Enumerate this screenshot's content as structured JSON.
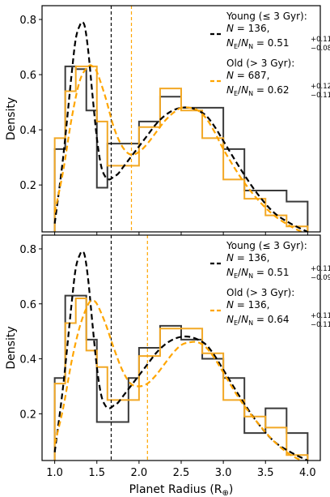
{
  "chart_data": [
    {
      "type": "line",
      "panel": "top",
      "xlabel": "",
      "ylabel": "Density",
      "xlim": [
        0.85,
        4.15
      ],
      "ylim": [
        0.03,
        0.85
      ],
      "x_ticks": [
        1.0,
        1.5,
        2.0,
        2.5,
        3.0,
        3.5,
        4.0
      ],
      "x_tick_labels": [],
      "y_ticks": [
        0.2,
        0.4,
        0.6,
        0.8
      ],
      "y_tick_labels": [
        "0.2",
        "0.4",
        "0.6",
        "0.8"
      ],
      "grid": false,
      "legend_position": "top-right",
      "legend": [
        {
          "title": "Young (≤ 3 Gyr):",
          "n_text": "N = 136,",
          "ratio_label": "NE/NN = ",
          "ratio_value": "0.51",
          "err_plus": "+0.11",
          "err_minus": "−0.08",
          "color": "#000000"
        },
        {
          "title": "Old (> 3 Gyr):",
          "n_text": "N = 687,",
          "ratio_label": "NE/NN = ",
          "ratio_value": "0.62",
          "err_plus": "+0.12",
          "err_minus": "−0.11",
          "color": "#FFA500"
        }
      ],
      "vlines": [
        {
          "x": 1.67,
          "color": "#000000"
        },
        {
          "x": 1.91,
          "color": "#FFA500"
        }
      ],
      "histograms": [
        {
          "group": "young",
          "color": "#3a3a3a",
          "bin_edges": [
            1.0,
            1.125,
            1.25,
            1.375,
            1.5,
            1.625,
            1.75,
            1.875,
            2.0,
            2.125,
            2.25,
            2.375,
            2.5,
            2.625,
            2.75,
            2.875,
            3.0,
            3.125,
            3.25,
            3.375,
            3.5,
            3.625,
            3.75,
            3.875,
            4.0
          ],
          "bin_edges_used": [
            1.0,
            1.125,
            1.25,
            1.375,
            1.5,
            1.625,
            1.75,
            1.875,
            2.0,
            2.125,
            2.25,
            2.375,
            2.5,
            2.625,
            2.75,
            2.875,
            3.0,
            3.125,
            3.25,
            3.375,
            3.5,
            3.625,
            3.75,
            3.875,
            4.0
          ]
        },
        {
          "group": "old",
          "color": "#F2A825"
        }
      ],
      "series": [
        {
          "name": "Young (≤ 3 Gyr)",
          "style": "hist",
          "color": "#3a3a3a",
          "bins": [
            [
              1.0,
              1.125,
              0.33
            ],
            [
              1.125,
              1.25,
              0.63
            ],
            [
              1.25,
              1.375,
              0.62
            ],
            [
              1.375,
              1.5,
              0.47
            ],
            [
              1.5,
              1.625,
              0.19
            ],
            [
              1.625,
              1.875,
              0.35
            ],
            [
              1.875,
              2.0,
              0.35
            ],
            [
              2.0,
              2.25,
              0.43
            ],
            [
              2.25,
              2.5,
              0.52
            ],
            [
              2.5,
              2.75,
              0.48
            ],
            [
              2.75,
              3.0,
              0.48
            ],
            [
              3.0,
              3.25,
              0.33
            ],
            [
              3.25,
              3.5,
              0.18
            ],
            [
              3.5,
              3.75,
              0.18
            ],
            [
              3.75,
              4.0,
              0.14
            ]
          ]
        },
        {
          "name": "Old (> 3 Gyr)",
          "style": "hist",
          "color": "#F2A825",
          "bins": [
            [
              1.0,
              1.125,
              0.37
            ],
            [
              1.125,
              1.25,
              0.54
            ],
            [
              1.25,
              1.375,
              0.63
            ],
            [
              1.375,
              1.5,
              0.63
            ],
            [
              1.5,
              1.625,
              0.43
            ],
            [
              1.625,
              1.875,
              0.27
            ],
            [
              1.875,
              2.0,
              0.27
            ],
            [
              2.0,
              2.25,
              0.41
            ],
            [
              2.25,
              2.5,
              0.55
            ],
            [
              2.5,
              2.75,
              0.47
            ],
            [
              2.75,
              3.0,
              0.37
            ],
            [
              3.0,
              3.25,
              0.22
            ],
            [
              3.25,
              3.5,
              0.15
            ],
            [
              3.5,
              3.75,
              0.09
            ],
            [
              3.75,
              4.0,
              0.05
            ]
          ]
        },
        {
          "name": "Young (≤ 3 Gyr)",
          "style": "dashed",
          "color": "#000000",
          "x": [
            1.0,
            1.1,
            1.2,
            1.25,
            1.3,
            1.33,
            1.36,
            1.4,
            1.45,
            1.5,
            1.55,
            1.6,
            1.65,
            1.7,
            1.75,
            1.8,
            1.9,
            2.0,
            2.1,
            2.2,
            2.3,
            2.4,
            2.5,
            2.6,
            2.7,
            2.8,
            2.9,
            3.0,
            3.2,
            3.4,
            3.6,
            3.8,
            4.0
          ],
          "y": [
            0.06,
            0.3,
            0.6,
            0.73,
            0.78,
            0.79,
            0.77,
            0.68,
            0.52,
            0.37,
            0.27,
            0.23,
            0.22,
            0.23,
            0.24,
            0.26,
            0.3,
            0.34,
            0.38,
            0.42,
            0.45,
            0.47,
            0.48,
            0.48,
            0.47,
            0.45,
            0.41,
            0.36,
            0.26,
            0.17,
            0.1,
            0.06,
            0.03
          ]
        },
        {
          "name": "Old (> 3 Gyr)",
          "style": "dashed",
          "color": "#FFA500",
          "x": [
            1.0,
            1.1,
            1.2,
            1.3,
            1.4,
            1.45,
            1.5,
            1.6,
            1.7,
            1.8,
            1.9,
            2.0,
            2.1,
            2.2,
            2.3,
            2.4,
            2.5,
            2.6,
            2.7,
            2.8,
            2.9,
            3.0,
            3.2,
            3.4,
            3.6,
            3.8,
            4.0
          ],
          "y": [
            0.1,
            0.25,
            0.44,
            0.58,
            0.63,
            0.63,
            0.61,
            0.52,
            0.41,
            0.34,
            0.31,
            0.32,
            0.35,
            0.39,
            0.43,
            0.46,
            0.48,
            0.48,
            0.47,
            0.44,
            0.39,
            0.33,
            0.23,
            0.15,
            0.09,
            0.05,
            0.02
          ]
        }
      ]
    },
    {
      "type": "line",
      "panel": "bottom",
      "xlabel": "Planet Radius (R⊕)",
      "ylabel": "Density",
      "xlim": [
        0.85,
        4.15
      ],
      "ylim": [
        0.03,
        0.85
      ],
      "x_ticks": [
        1.0,
        1.5,
        2.0,
        2.5,
        3.0,
        3.5,
        4.0
      ],
      "x_tick_labels": [
        "1.0",
        "1.5",
        "2.0",
        "2.5",
        "3.0",
        "3.5",
        "4.0"
      ],
      "y_ticks": [
        0.2,
        0.4,
        0.6,
        0.8
      ],
      "y_tick_labels": [
        "0.2",
        "0.4",
        "0.6",
        "0.8"
      ],
      "grid": false,
      "legend_position": "top-right",
      "legend": [
        {
          "title": "Young (≤ 3 Gyr):",
          "n_text": "N = 136,",
          "ratio_label": "NE/NN = ",
          "ratio_value": "0.51",
          "err_plus": "+0.11",
          "err_minus": "−0.09",
          "color": "#000000"
        },
        {
          "title": "Old (> 3 Gyr):",
          "n_text": "N = 136,",
          "ratio_label": "NE/NN = ",
          "ratio_value": "0.64",
          "err_plus": "+0.11",
          "err_minus": "−0.11",
          "color": "#FFA500"
        }
      ],
      "vlines": [
        {
          "x": 1.67,
          "color": "#000000"
        },
        {
          "x": 2.1,
          "color": "#FFA500"
        }
      ],
      "series": [
        {
          "name": "Young (≤ 3 Gyr)",
          "style": "hist",
          "color": "#3a3a3a",
          "bins": [
            [
              1.0,
              1.125,
              0.33
            ],
            [
              1.125,
              1.25,
              0.63
            ],
            [
              1.25,
              1.375,
              0.63
            ],
            [
              1.375,
              1.5,
              0.47
            ],
            [
              1.5,
              1.625,
              0.17
            ],
            [
              1.625,
              1.875,
              0.17
            ],
            [
              1.875,
              2.0,
              0.33
            ],
            [
              2.0,
              2.25,
              0.44
            ],
            [
              2.25,
              2.5,
              0.52
            ],
            [
              2.5,
              2.75,
              0.47
            ],
            [
              2.75,
              3.0,
              0.4
            ],
            [
              3.0,
              3.25,
              0.33
            ],
            [
              3.25,
              3.5,
              0.13
            ],
            [
              3.5,
              3.75,
              0.22
            ],
            [
              3.75,
              4.0,
              0.13
            ]
          ]
        },
        {
          "name": "Old (> 3 Gyr)",
          "style": "hist",
          "color": "#F2A825",
          "bins": [
            [
              1.0,
              1.125,
              0.31
            ],
            [
              1.125,
              1.25,
              0.53
            ],
            [
              1.25,
              1.375,
              0.62
            ],
            [
              1.375,
              1.5,
              0.43
            ],
            [
              1.5,
              1.625,
              0.37
            ],
            [
              1.625,
              1.875,
              0.25
            ],
            [
              1.875,
              2.0,
              0.25
            ],
            [
              2.0,
              2.25,
              0.41
            ],
            [
              2.25,
              2.5,
              0.51
            ],
            [
              2.5,
              2.75,
              0.51
            ],
            [
              2.75,
              3.0,
              0.42
            ],
            [
              3.0,
              3.25,
              0.25
            ],
            [
              3.25,
              3.5,
              0.19
            ],
            [
              3.5,
              3.75,
              0.15
            ],
            [
              3.75,
              4.0,
              0.05
            ]
          ]
        },
        {
          "name": "Young (≤ 3 Gyr)",
          "style": "dashed",
          "color": "#000000",
          "x": [
            1.0,
            1.1,
            1.2,
            1.25,
            1.3,
            1.33,
            1.36,
            1.4,
            1.45,
            1.5,
            1.55,
            1.6,
            1.65,
            1.7,
            1.75,
            1.8,
            1.9,
            2.0,
            2.1,
            2.2,
            2.3,
            2.4,
            2.5,
            2.6,
            2.7,
            2.8,
            2.9,
            3.0,
            3.2,
            3.4,
            3.6,
            3.8,
            4.0
          ],
          "y": [
            0.06,
            0.3,
            0.6,
            0.73,
            0.78,
            0.79,
            0.77,
            0.68,
            0.52,
            0.37,
            0.27,
            0.23,
            0.22,
            0.23,
            0.24,
            0.26,
            0.3,
            0.34,
            0.38,
            0.42,
            0.45,
            0.47,
            0.48,
            0.48,
            0.47,
            0.45,
            0.41,
            0.36,
            0.26,
            0.17,
            0.1,
            0.06,
            0.03
          ]
        },
        {
          "name": "Old (> 3 Gyr)",
          "style": "dashed",
          "color": "#FFA500",
          "x": [
            1.0,
            1.1,
            1.2,
            1.3,
            1.4,
            1.45,
            1.5,
            1.6,
            1.7,
            1.8,
            1.9,
            2.0,
            2.1,
            2.2,
            2.3,
            2.4,
            2.5,
            2.6,
            2.7,
            2.8,
            2.9,
            3.0,
            3.2,
            3.4,
            3.6,
            3.8,
            4.0
          ],
          "y": [
            0.09,
            0.22,
            0.39,
            0.52,
            0.6,
            0.61,
            0.6,
            0.53,
            0.44,
            0.36,
            0.31,
            0.3,
            0.31,
            0.34,
            0.38,
            0.42,
            0.45,
            0.46,
            0.46,
            0.44,
            0.4,
            0.35,
            0.25,
            0.17,
            0.1,
            0.05,
            0.02
          ]
        }
      ]
    }
  ]
}
